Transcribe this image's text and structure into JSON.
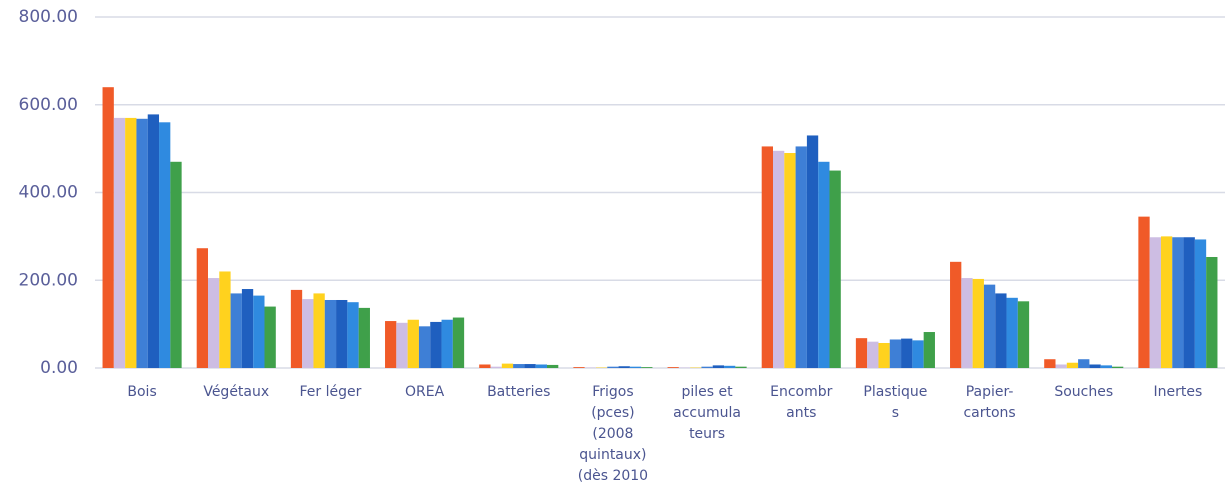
{
  "chart_data": {
    "type": "bar",
    "categories": [
      "Bois",
      "Végétaux",
      "Fer léger",
      "OREA",
      "Batteries",
      "Frigos\n(pces)\n(2008\nquintaux)\n(dès 2010",
      "piles et\naccumula\nteurs",
      "Encombr\nants",
      "Plastique\ns",
      "Papier-\ncartons",
      "Souches",
      "Inertes"
    ],
    "series": [
      {
        "color": "#f05a28",
        "values": [
          640,
          273,
          178,
          107,
          8,
          2,
          2,
          505,
          68,
          242,
          20,
          345
        ]
      },
      {
        "color": "#cdbde3",
        "values": [
          570,
          205,
          157,
          103,
          3,
          1,
          1,
          495,
          60,
          205,
          8,
          298
        ]
      },
      {
        "color": "#ffd21e",
        "values": [
          570,
          220,
          170,
          110,
          10,
          1,
          1,
          490,
          57,
          203,
          12,
          300
        ]
      },
      {
        "color": "#3e7fd6",
        "values": [
          568,
          170,
          155,
          95,
          9,
          3,
          3,
          505,
          65,
          190,
          20,
          298
        ]
      },
      {
        "color": "#1f5fbf",
        "values": [
          578,
          180,
          155,
          105,
          9,
          4,
          6,
          530,
          67,
          170,
          8,
          298
        ]
      },
      {
        "color": "#2f8ae0",
        "values": [
          560,
          165,
          150,
          110,
          8,
          3,
          5,
          470,
          63,
          160,
          6,
          293
        ]
      },
      {
        "color": "#3fa04a",
        "values": [
          470,
          140,
          137,
          115,
          7,
          2,
          3,
          450,
          82,
          152,
          3,
          253
        ]
      }
    ],
    "ylim": [
      0,
      800
    ],
    "yticks": [
      {
        "value": 0,
        "label": "0.00"
      },
      {
        "value": 200,
        "label": "200.00"
      },
      {
        "value": 400,
        "label": "400.00"
      },
      {
        "value": 600,
        "label": "600.00"
      },
      {
        "value": 800,
        "label": "800.00"
      }
    ],
    "grid": true
  }
}
